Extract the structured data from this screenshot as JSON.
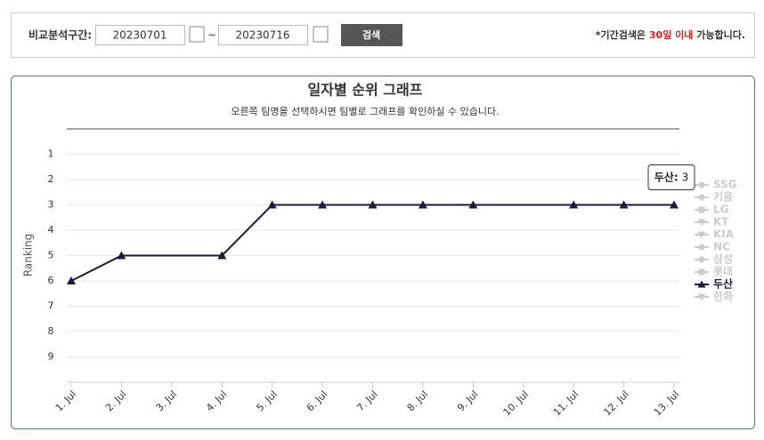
{
  "filter": {
    "label": "비교분석구간:",
    "start": "20230701",
    "separator": "~",
    "end": "20230716",
    "button": "검색",
    "note_before": "*기간검색은 ",
    "note_highlight": "30일 이내",
    "note_after": " 가능합니다."
  },
  "chart_data": {
    "type": "line",
    "title": "일자별 순위 그래프",
    "subtitle": "오른쪽 팀명을 선택하시면 팀별로 그래프를 확인하실 수 있습니다.",
    "y_label": "Ranking",
    "x": [
      1,
      2,
      4,
      5,
      6,
      7,
      8,
      9,
      11,
      12,
      13
    ],
    "xlim": [
      1,
      13
    ],
    "xticks": [
      {
        "value": 1,
        "label": "1. Jul"
      },
      {
        "value": 2,
        "label": "2. Jul"
      },
      {
        "value": 3,
        "label": "3. Jul"
      },
      {
        "value": 4,
        "label": "4. Jul"
      },
      {
        "value": 5,
        "label": "5. Jul"
      },
      {
        "value": 6,
        "label": "6. Jul"
      },
      {
        "value": 7,
        "label": "7. Jul"
      },
      {
        "value": 8,
        "label": "8. Jul"
      },
      {
        "value": 9,
        "label": "9. Jul"
      },
      {
        "value": 10,
        "label": "10. Jul"
      },
      {
        "value": 11,
        "label": "11. Jul"
      },
      {
        "value": 12,
        "label": "12. Jul"
      },
      {
        "value": 13,
        "label": "13. Jul"
      }
    ],
    "ylim": [
      10,
      0
    ],
    "yticks": [
      1,
      2,
      3,
      4,
      5,
      6,
      7,
      8,
      9
    ],
    "grid": true,
    "series": [
      {
        "name": "SSG",
        "marker": "circle",
        "visible": false
      },
      {
        "name": "키움",
        "marker": "diamond",
        "visible": false
      },
      {
        "name": "LG",
        "marker": "square",
        "visible": false
      },
      {
        "name": "KT",
        "marker": "triangle-down",
        "visible": false
      },
      {
        "name": "KIA",
        "marker": "triangle-down",
        "visible": false
      },
      {
        "name": "NC",
        "marker": "circle",
        "visible": false
      },
      {
        "name": "삼성",
        "marker": "diamond",
        "visible": false
      },
      {
        "name": "롯데",
        "marker": "square",
        "visible": false
      },
      {
        "name": "두산",
        "marker": "triangle",
        "visible": true,
        "color": "#1b1a3e",
        "values": [
          6,
          5,
          5,
          3,
          3,
          3,
          3,
          3,
          3,
          3,
          3
        ]
      },
      {
        "name": "한화",
        "marker": "triangle-down",
        "visible": false
      }
    ],
    "tooltip": {
      "name": "두산:",
      "value": "3"
    }
  }
}
